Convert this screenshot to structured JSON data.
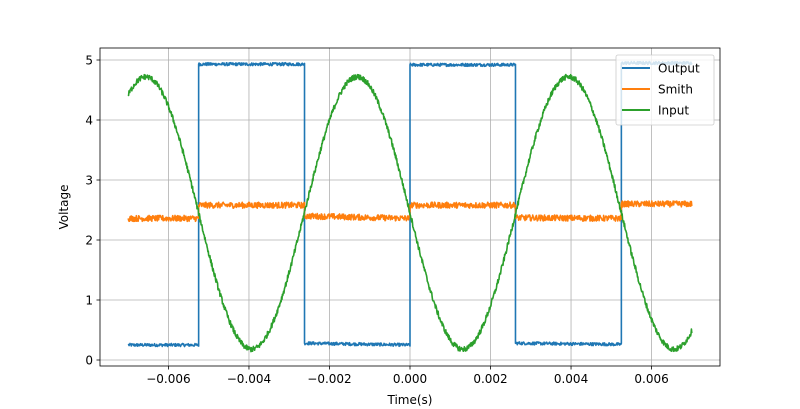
{
  "chart_data": {
    "type": "line",
    "title": "",
    "xlabel": "Time(s)",
    "ylabel": "Voltage",
    "xlim": [
      -0.0077,
      0.0077
    ],
    "ylim": [
      -0.1,
      5.2
    ],
    "x_ticks": [
      -0.006,
      -0.004,
      -0.002,
      0.0,
      0.002,
      0.004,
      0.006
    ],
    "x_tick_labels": [
      "−0.006",
      "−0.004",
      "−0.002",
      "0.000",
      "0.002",
      "0.004",
      "0.006"
    ],
    "y_ticks": [
      0,
      1,
      2,
      3,
      4,
      5
    ],
    "y_tick_labels": [
      "0",
      "1",
      "2",
      "3",
      "4",
      "5"
    ],
    "grid": true,
    "legend_position": "top-right",
    "colors": {
      "Output": "#1f77b4",
      "Smith": "#ff7f0e",
      "Input": "#2ca02c"
    },
    "series": [
      {
        "name": "Output",
        "style": "square",
        "x": [
          -0.007,
          -0.00525,
          -0.00525,
          -0.00262,
          -0.00262,
          0.0,
          0.0,
          0.00262,
          0.00262,
          0.00525,
          0.00525,
          0.007
        ],
        "values": [
          0.25,
          0.25,
          4.93,
          4.93,
          0.28,
          0.25,
          4.92,
          4.92,
          0.28,
          0.26,
          4.95,
          4.95
        ]
      },
      {
        "name": "Smith",
        "style": "square-noisy",
        "x": [
          -0.007,
          -0.00525,
          -0.00525,
          -0.00262,
          -0.00262,
          0.0,
          0.0,
          0.00262,
          0.00262,
          0.00525,
          0.00525,
          0.007
        ],
        "values": [
          2.36,
          2.36,
          2.58,
          2.58,
          2.4,
          2.36,
          2.58,
          2.58,
          2.37,
          2.36,
          2.6,
          2.6
        ]
      },
      {
        "name": "Input",
        "style": "sine",
        "amplitude": 2.27,
        "offset": 2.45,
        "period": 0.00525,
        "phase_zero_crossing_down": -0.00525,
        "x_start": -0.007,
        "x_end": 0.007,
        "peaks_x": [
          -0.00656,
          -0.00131,
          0.00394
        ],
        "peaks_y": 4.72,
        "troughs_x": [
          -0.00394,
          0.00131,
          0.00656
        ],
        "troughs_y": 0.18
      }
    ]
  }
}
